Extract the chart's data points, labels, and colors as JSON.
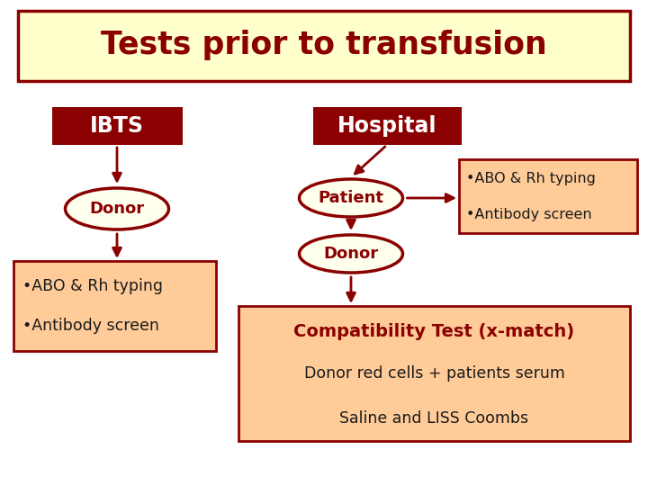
{
  "title": "Tests prior to transfusion",
  "title_bg": "#FFFFCC",
  "title_border": "#8B0000",
  "title_color": "#8B0000",
  "dark_red": "#8B0000",
  "light_orange": "#FFCC99",
  "ellipse_fill": "#FFFFEE",
  "ibts_label": "IBTS",
  "hospital_label": "Hospital",
  "patient_label": "Patient",
  "donor_label": "Donor",
  "left_bullet1": "•ABO & Rh typing",
  "left_bullet2": "•Antibody screen",
  "right_bullet1": "•ABO & Rh typing",
  "right_bullet2": "•Antibody screen",
  "compat_title": "Compatibility Test (x-match)",
  "compat_line1": "Donor red cells + patients serum",
  "compat_line2": "Saline and LISS Coombs",
  "bg_color": "#FFFFFF"
}
